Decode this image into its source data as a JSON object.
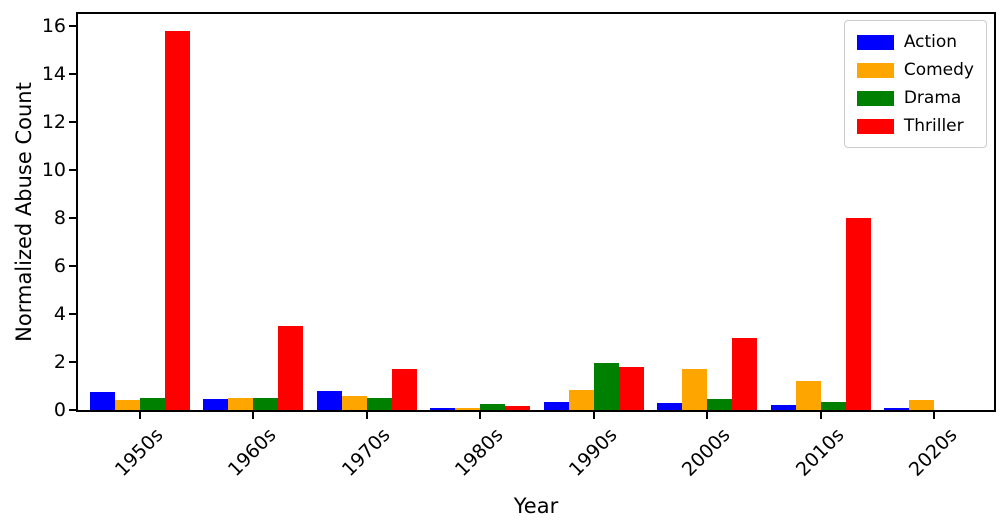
{
  "chart_data": {
    "type": "bar",
    "title": "",
    "xlabel": "Year",
    "ylabel": "Normalized Abuse Count",
    "categories": [
      "1950s",
      "1960s",
      "1970s",
      "1980s",
      "1990s",
      "2000s",
      "2010s",
      "2020s"
    ],
    "series": [
      {
        "name": "Action",
        "color": "#0000ff",
        "values": [
          0.75,
          0.45,
          0.8,
          0.1,
          0.35,
          0.3,
          0.2,
          0.08
        ]
      },
      {
        "name": "Comedy",
        "color": "#ffa500",
        "values": [
          0.4,
          0.5,
          0.6,
          0.08,
          0.85,
          1.7,
          1.2,
          0.4
        ]
      },
      {
        "name": "Drama",
        "color": "#008000",
        "values": [
          0.5,
          0.5,
          0.5,
          0.25,
          1.95,
          0.45,
          0.35,
          0
        ]
      },
      {
        "name": "Thriller",
        "color": "#ff0000",
        "values": [
          15.8,
          3.5,
          1.7,
          0.18,
          1.8,
          3.0,
          8.0,
          0
        ]
      }
    ],
    "y_ticks": [
      0,
      2,
      4,
      6,
      8,
      10,
      12,
      14,
      16
    ],
    "ylim": [
      0,
      16.5
    ],
    "grid": false,
    "legend_position": "upper right",
    "axis_color": "#000000",
    "background_color": "#ffffff"
  }
}
